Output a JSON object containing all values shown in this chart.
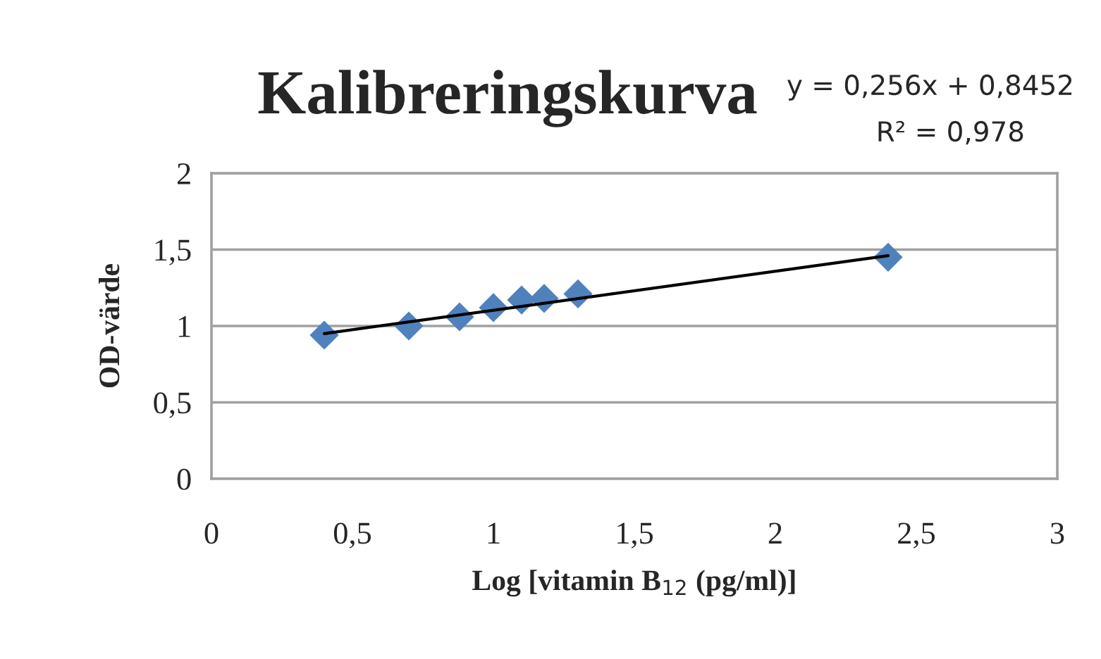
{
  "chart_data": {
    "type": "scatter",
    "title": "Kalibreringskurva",
    "xlabel": "Log [vitamin B$_{12}$ (pg/ml)]",
    "ylabel": "OD-värde",
    "annotations": [
      "y = 0,256x + 0,8452",
      "R² = 0,978"
    ],
    "series": [
      {
        "color": "#4f81bd",
        "marker": "diamond",
        "x": [
          0.4,
          0.7,
          0.88,
          1.0,
          1.1,
          1.18,
          1.3,
          2.4
        ],
        "values": [
          0.94,
          1.0,
          1.06,
          1.12,
          1.17,
          1.18,
          1.21,
          1.45
        ]
      },
      {
        "type": "line",
        "color": "#000000",
        "marker": "none",
        "line_style": "solid",
        "x": [
          0.4,
          2.4
        ],
        "values": [
          0.95,
          1.46
        ]
      }
    ],
    "xlim": [
      0,
      3
    ],
    "xticks": [
      0,
      {
        "value": 0.5,
        "label": "0,5"
      },
      1,
      {
        "value": 1.5,
        "label": "1,5"
      },
      2,
      {
        "value": 2.5,
        "label": "2,5"
      },
      3
    ],
    "ylim": [
      0,
      2
    ],
    "yticks": [
      0,
      {
        "value": 0.5,
        "label": "0,5"
      },
      1,
      {
        "value": 1.5,
        "label": "1,5"
      },
      2
    ],
    "grid": "y",
    "legend": false
  }
}
